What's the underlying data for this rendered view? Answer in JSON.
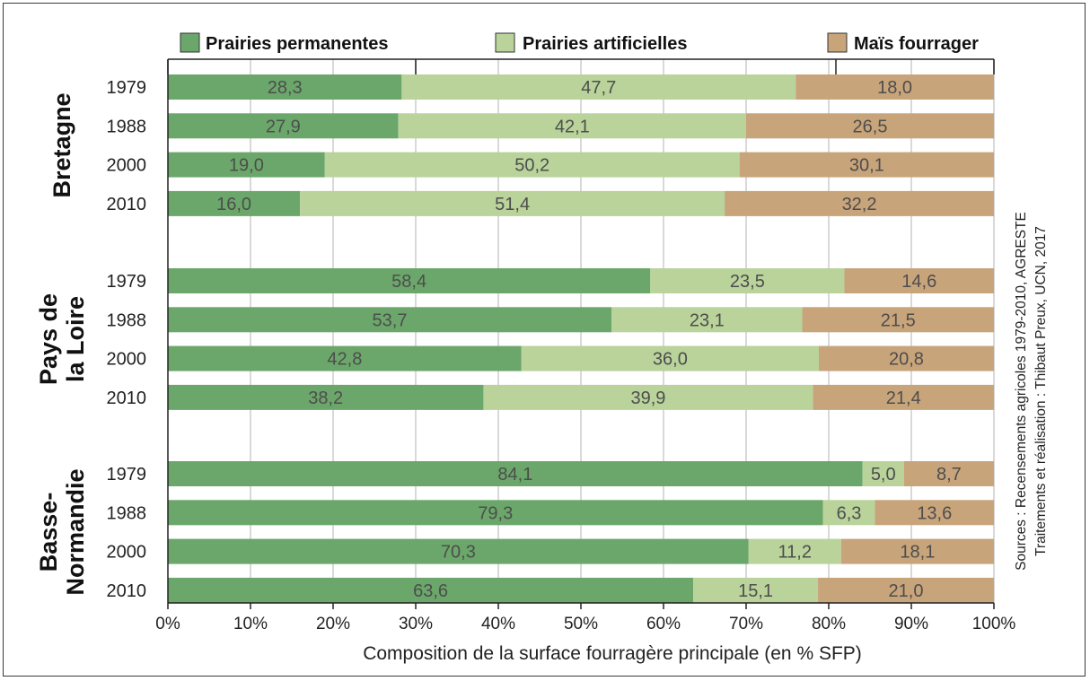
{
  "chart_data": {
    "type": "bar",
    "orientation": "horizontal",
    "stacked": true,
    "xlabel": "Composition de la surface fourragère principale (en % SFP)",
    "xlim": [
      0,
      100
    ],
    "x_ticks": [
      "0%",
      "10%",
      "20%",
      "30%",
      "40%",
      "50%",
      "60%",
      "70%",
      "80%",
      "90%",
      "100%"
    ],
    "grid": true,
    "legend_position": "top",
    "source_lines": [
      "Sources : Recensements agricoles 1979-2010, AGRESTE",
      "Traitements et réalisation : Thibaut Preux, UCN, 2017"
    ],
    "series": [
      {
        "name": "Prairies permanentes",
        "color": "#6ba76b"
      },
      {
        "name": "Prairies artificielles",
        "color": "#b9d39b"
      },
      {
        "name": "Maïs fourrager",
        "color": "#c8a47b"
      }
    ],
    "groups": [
      {
        "name_lines": [
          "Bretagne"
        ],
        "rows": [
          {
            "year": "1979",
            "values": [
              28.3,
              47.7,
              18.0
            ],
            "labels": [
              "28,3",
              "47,7",
              "18,0"
            ]
          },
          {
            "year": "1988",
            "values": [
              27.9,
              42.1,
              26.5
            ],
            "labels": [
              "27,9",
              "42,1",
              "26,5"
            ]
          },
          {
            "year": "2000",
            "values": [
              19.0,
              50.2,
              30.1
            ],
            "labels": [
              "19,0",
              "50,2",
              "30,1"
            ]
          },
          {
            "year": "2010",
            "values": [
              16.0,
              51.4,
              32.2
            ],
            "labels": [
              "16,0",
              "51,4",
              "32,2"
            ]
          }
        ]
      },
      {
        "name_lines": [
          "Pays de",
          "la Loire"
        ],
        "rows": [
          {
            "year": "1979",
            "values": [
              58.4,
              23.5,
              14.6
            ],
            "labels": [
              "58,4",
              "23,5",
              "14,6"
            ]
          },
          {
            "year": "1988",
            "values": [
              53.7,
              23.1,
              21.5
            ],
            "labels": [
              "53,7",
              "23,1",
              "21,5"
            ]
          },
          {
            "year": "2000",
            "values": [
              42.8,
              36.0,
              20.8
            ],
            "labels": [
              "42,8",
              "36,0",
              "20,8"
            ]
          },
          {
            "year": "2010",
            "values": [
              38.2,
              39.9,
              21.4
            ],
            "labels": [
              "38,2",
              "39,9",
              "21,4"
            ]
          }
        ]
      },
      {
        "name_lines": [
          "Basse-",
          "Normandie"
        ],
        "rows": [
          {
            "year": "1979",
            "values": [
              84.1,
              5.0,
              8.7
            ],
            "labels": [
              "84,1",
              "5,0",
              "8,7"
            ]
          },
          {
            "year": "1988",
            "values": [
              79.3,
              6.3,
              13.6
            ],
            "labels": [
              "79,3",
              "6,3",
              "13,6"
            ]
          },
          {
            "year": "2000",
            "values": [
              70.3,
              11.2,
              18.1
            ],
            "labels": [
              "70,3",
              "11,2",
              "18,1"
            ]
          },
          {
            "year": "2010",
            "values": [
              63.6,
              15.1,
              21.0
            ],
            "labels": [
              "63,6",
              "15,1",
              "21,0"
            ]
          }
        ]
      }
    ]
  }
}
